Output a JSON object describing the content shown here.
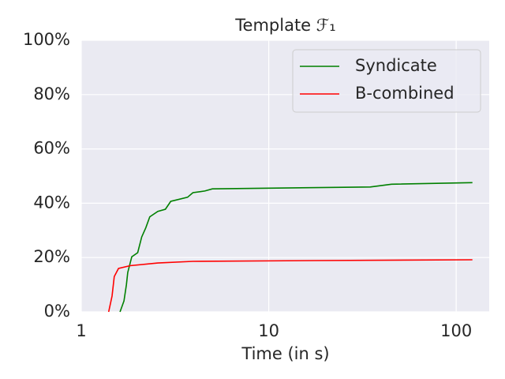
{
  "chart_data": {
    "type": "line",
    "title": "Template ℱ₁",
    "xlabel": "Time (in s)",
    "xscale": "log",
    "xlim": [
      1,
      150
    ],
    "xticks": [
      1,
      10,
      100
    ],
    "ylim": [
      0,
      100
    ],
    "yticks": [
      {
        "value": 0,
        "label": "0%"
      },
      {
        "value": 20,
        "label": "20%"
      },
      {
        "value": 40,
        "label": "40%"
      },
      {
        "value": 60,
        "label": "60%"
      },
      {
        "value": 80,
        "label": "80%"
      },
      {
        "value": 100,
        "label": "100%"
      }
    ],
    "grid": true,
    "legend": "upper right",
    "series": [
      {
        "name": "Syndicate",
        "color": "#008000",
        "x": [
          1.61,
          1.69,
          1.74,
          1.77,
          1.86,
          2.0,
          2.1,
          2.21,
          2.32,
          2.56,
          2.81,
          3.0,
          3.69,
          3.94,
          4.56,
          5.0,
          34.8,
          45.2,
          122
        ],
        "values": [
          0,
          4,
          10,
          14.5,
          20.3,
          21.8,
          27.6,
          31,
          35,
          37,
          37.8,
          40.7,
          42.2,
          43.9,
          44.5,
          45.3,
          46,
          47,
          47.6
        ]
      },
      {
        "name": "B-combined",
        "color": "#ff0000",
        "x": [
          1.4,
          1.46,
          1.5,
          1.58,
          1.82,
          2.56,
          3.94,
          17.7,
          122
        ],
        "values": [
          0,
          5.8,
          13,
          16,
          17,
          18,
          18.6,
          18.9,
          19.2
        ]
      }
    ]
  }
}
